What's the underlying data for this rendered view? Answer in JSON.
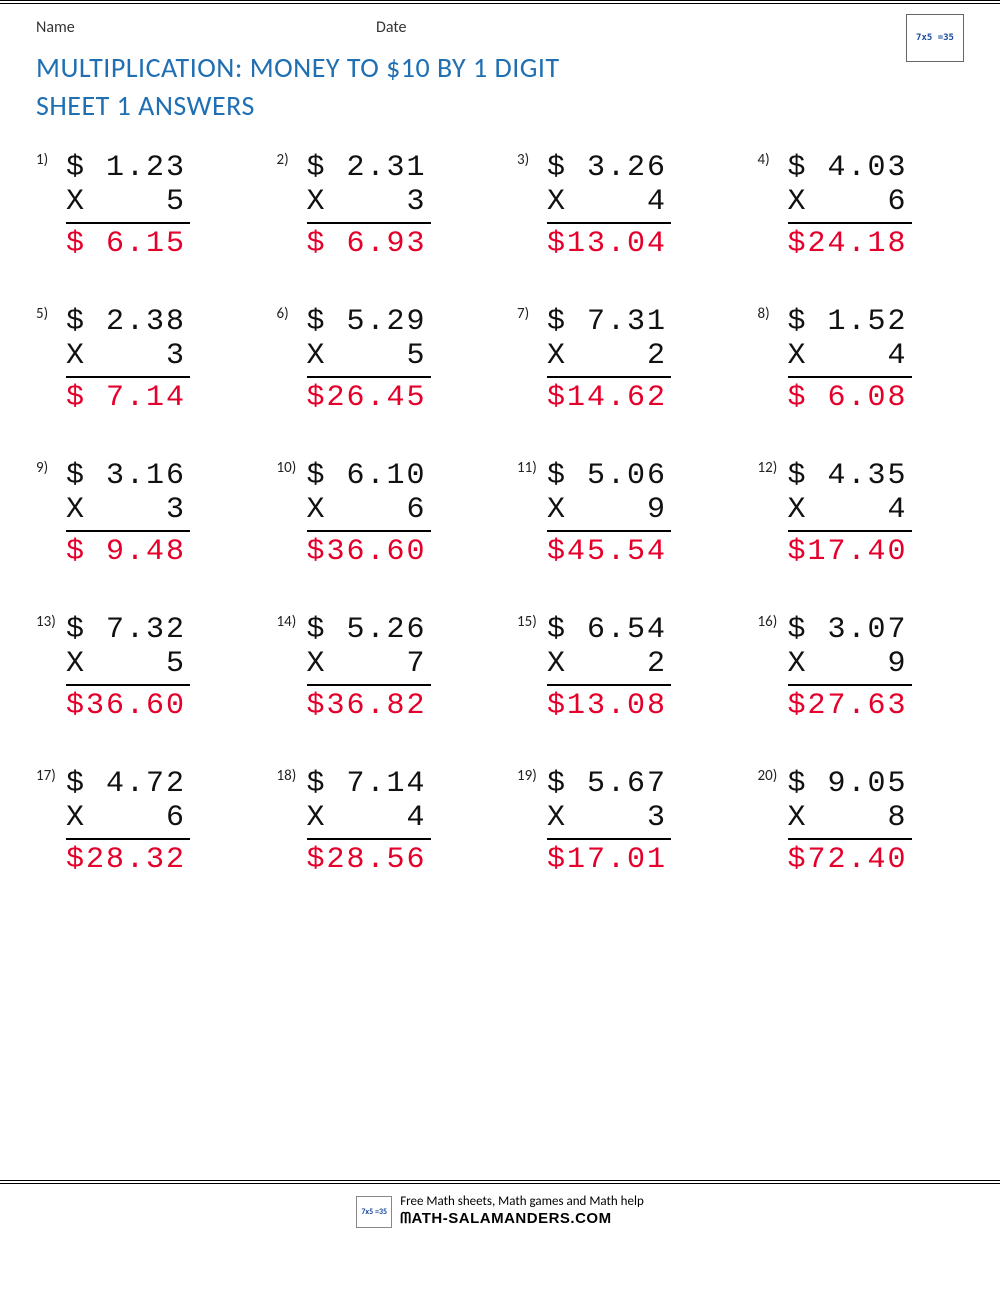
{
  "header": {
    "name_label": "Name",
    "date_label": "Date"
  },
  "title": {
    "line1": "MULTIPLICATION: MONEY TO $10 BY 1 DIGIT",
    "line2": "SHEET 1 ANSWERS"
  },
  "colors": {
    "title": "#1f6fb2",
    "answer": "#e4002b",
    "text": "#111111",
    "rule": "#000000"
  },
  "typography": {
    "title_fontsize": 28,
    "problem_fontsize": 30,
    "label_fontsize": 16,
    "pnum_fontsize": 15,
    "calc_font": "Consolas, 'Courier New', monospace"
  },
  "layout": {
    "columns": 4,
    "rows": 5,
    "column_gap": 34,
    "row_gap": 44
  },
  "symbols": {
    "currency": "$",
    "multiply": "X"
  },
  "problems": [
    {
      "n": "1)",
      "amount": "1.23",
      "mult": "5",
      "answer": "$ 6.15"
    },
    {
      "n": "2)",
      "amount": "2.31",
      "mult": "3",
      "answer": "$ 6.93"
    },
    {
      "n": "3)",
      "amount": "3.26",
      "mult": "4",
      "answer": "$13.04"
    },
    {
      "n": "4)",
      "amount": "4.03",
      "mult": "6",
      "answer": "$24.18"
    },
    {
      "n": "5)",
      "amount": "2.38",
      "mult": "3",
      "answer": "$ 7.14"
    },
    {
      "n": "6)",
      "amount": "5.29",
      "mult": "5",
      "answer": "$26.45"
    },
    {
      "n": "7)",
      "amount": "7.31",
      "mult": "2",
      "answer": "$14.62"
    },
    {
      "n": "8)",
      "amount": "1.52",
      "mult": "4",
      "answer": "$ 6.08"
    },
    {
      "n": "9)",
      "amount": "3.16",
      "mult": "3",
      "answer": "$ 9.48"
    },
    {
      "n": "10)",
      "amount": "6.10",
      "mult": "6",
      "answer": "$36.60"
    },
    {
      "n": "11)",
      "amount": "5.06",
      "mult": "9",
      "answer": "$45.54"
    },
    {
      "n": "12)",
      "amount": "4.35",
      "mult": "4",
      "answer": "$17.40"
    },
    {
      "n": "13)",
      "amount": "7.32",
      "mult": "5",
      "answer": "$36.60"
    },
    {
      "n": "14)",
      "amount": "5.26",
      "mult": "7",
      "answer": "$36.82"
    },
    {
      "n": "15)",
      "amount": "6.54",
      "mult": "2",
      "answer": "$13.08"
    },
    {
      "n": "16)",
      "amount": "3.07",
      "mult": "9",
      "answer": "$27.63"
    },
    {
      "n": "17)",
      "amount": "4.72",
      "mult": "6",
      "answer": "$28.32"
    },
    {
      "n": "18)",
      "amount": "7.14",
      "mult": "4",
      "answer": "$28.56"
    },
    {
      "n": "19)",
      "amount": "5.67",
      "mult": "3",
      "answer": "$17.01"
    },
    {
      "n": "20)",
      "amount": "9.05",
      "mult": "8",
      "answer": "$72.40"
    }
  ],
  "footer": {
    "tagline": "Free Math sheets, Math games and Math help",
    "site": "ᗰATH-SALAMANDERS.COM"
  },
  "logo": {
    "text": "7x5\n=35"
  }
}
